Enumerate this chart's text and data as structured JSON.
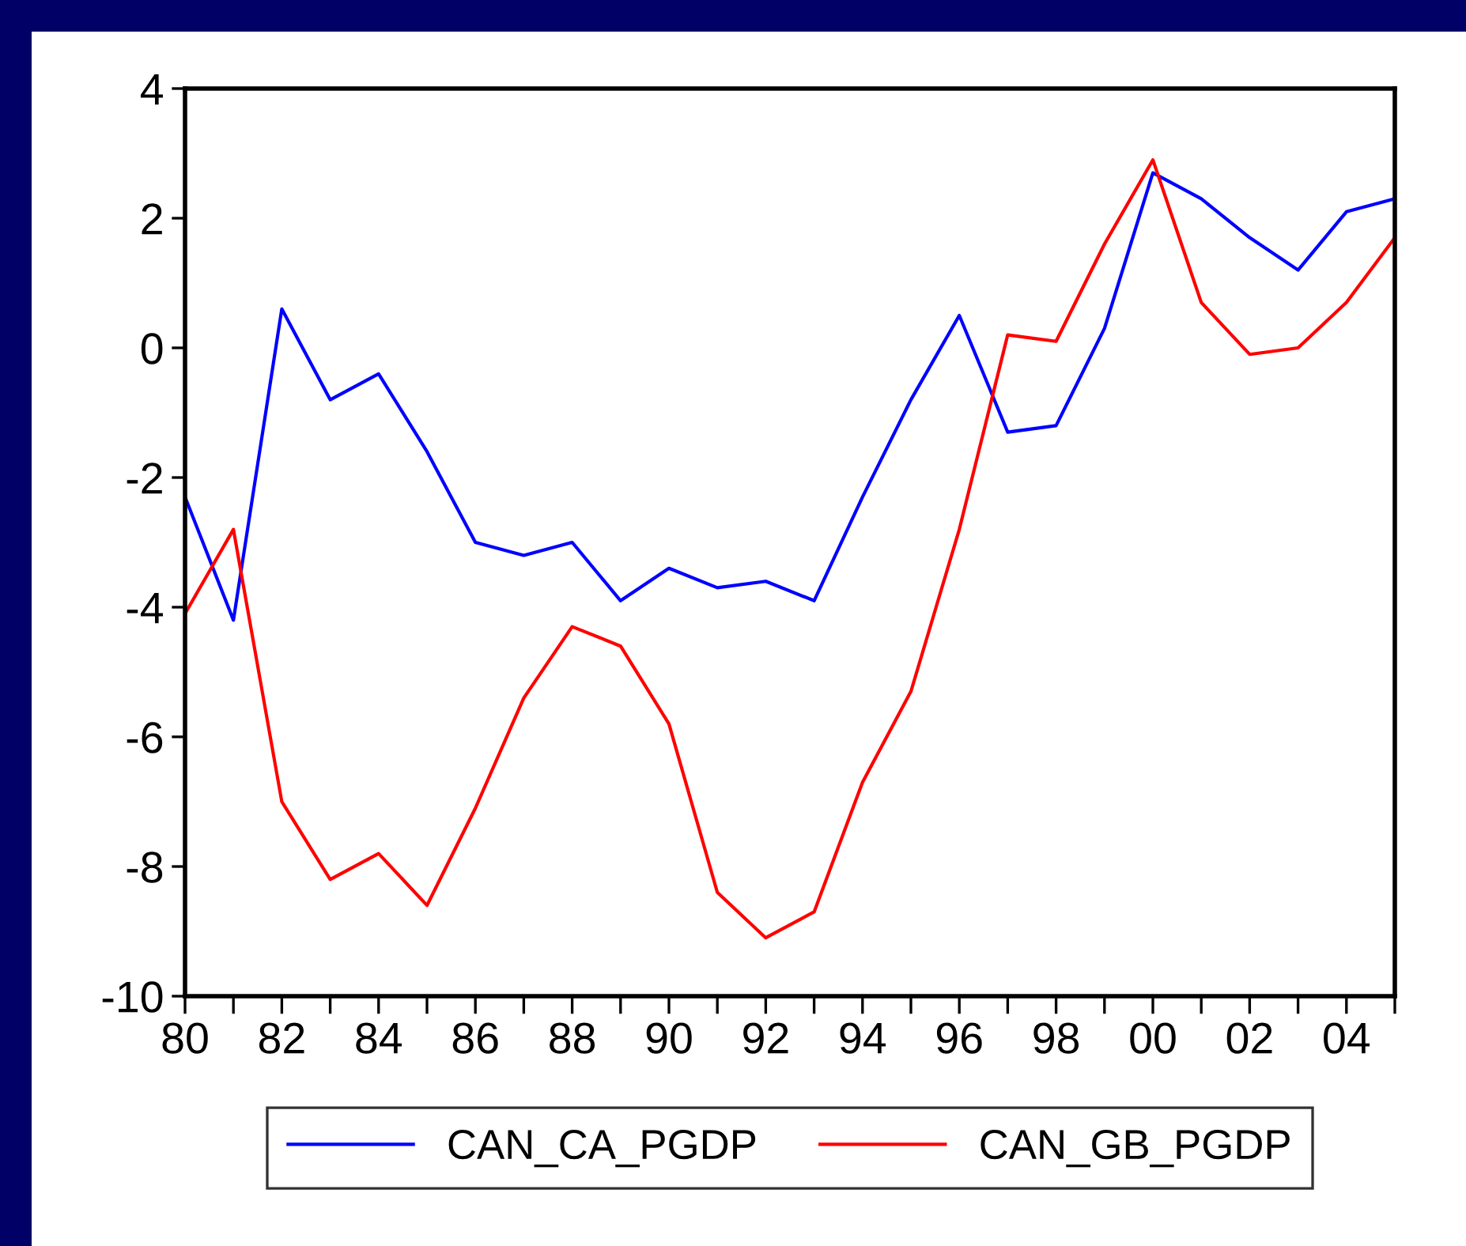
{
  "chart_data": {
    "type": "line",
    "x": [
      1980,
      1981,
      1982,
      1983,
      1984,
      1985,
      1986,
      1987,
      1988,
      1989,
      1990,
      1991,
      1992,
      1993,
      1994,
      1995,
      1996,
      1997,
      1998,
      1999,
      2000,
      2001,
      2002,
      2003,
      2004,
      2005
    ],
    "series": [
      {
        "name": "CAN_CA_PGDP",
        "color": "#0000ff",
        "values": [
          -2.3,
          -4.2,
          0.6,
          -0.8,
          -0.4,
          -1.6,
          -3.0,
          -3.2,
          -3.0,
          -3.9,
          -3.4,
          -3.7,
          -3.6,
          -3.9,
          -2.3,
          -0.8,
          0.5,
          -1.3,
          -1.2,
          0.3,
          2.7,
          2.3,
          1.7,
          1.2,
          2.1,
          2.3
        ]
      },
      {
        "name": "CAN_GB_PGDP",
        "color": "#ff0000",
        "values": [
          -4.1,
          -2.8,
          -7.0,
          -8.2,
          -7.8,
          -8.6,
          -7.1,
          -5.4,
          -4.3,
          -4.6,
          -5.8,
          -8.4,
          -9.1,
          -8.7,
          -6.7,
          -5.3,
          -2.8,
          0.2,
          0.1,
          1.6,
          2.9,
          0.7,
          -0.1,
          0.0,
          0.7,
          1.7
        ]
      }
    ],
    "xlim": [
      1980,
      2005
    ],
    "xticks": [
      {
        "value": 1980,
        "label": "80"
      },
      {
        "value": 1981,
        "label": null
      },
      {
        "value": 1982,
        "label": "82"
      },
      {
        "value": 1983,
        "label": null
      },
      {
        "value": 1984,
        "label": "84"
      },
      {
        "value": 1985,
        "label": null
      },
      {
        "value": 1986,
        "label": "86"
      },
      {
        "value": 1987,
        "label": null
      },
      {
        "value": 1988,
        "label": "88"
      },
      {
        "value": 1989,
        "label": null
      },
      {
        "value": 1990,
        "label": "90"
      },
      {
        "value": 1991,
        "label": null
      },
      {
        "value": 1992,
        "label": "92"
      },
      {
        "value": 1993,
        "label": null
      },
      {
        "value": 1994,
        "label": "94"
      },
      {
        "value": 1995,
        "label": null
      },
      {
        "value": 1996,
        "label": "96"
      },
      {
        "value": 1997,
        "label": null
      },
      {
        "value": 1998,
        "label": "98"
      },
      {
        "value": 1999,
        "label": null
      },
      {
        "value": 2000,
        "label": "00"
      },
      {
        "value": 2001,
        "label": null
      },
      {
        "value": 2002,
        "label": "02"
      },
      {
        "value": 2003,
        "label": null
      },
      {
        "value": 2004,
        "label": "04"
      },
      {
        "value": 2005,
        "label": null
      }
    ],
    "ylim": [
      -10,
      4
    ],
    "yticks": [
      -10,
      -8,
      -6,
      -4,
      -2,
      0,
      2,
      4
    ],
    "grid": false,
    "legend": "bottom",
    "marker": "none",
    "line_style": "solid"
  }
}
